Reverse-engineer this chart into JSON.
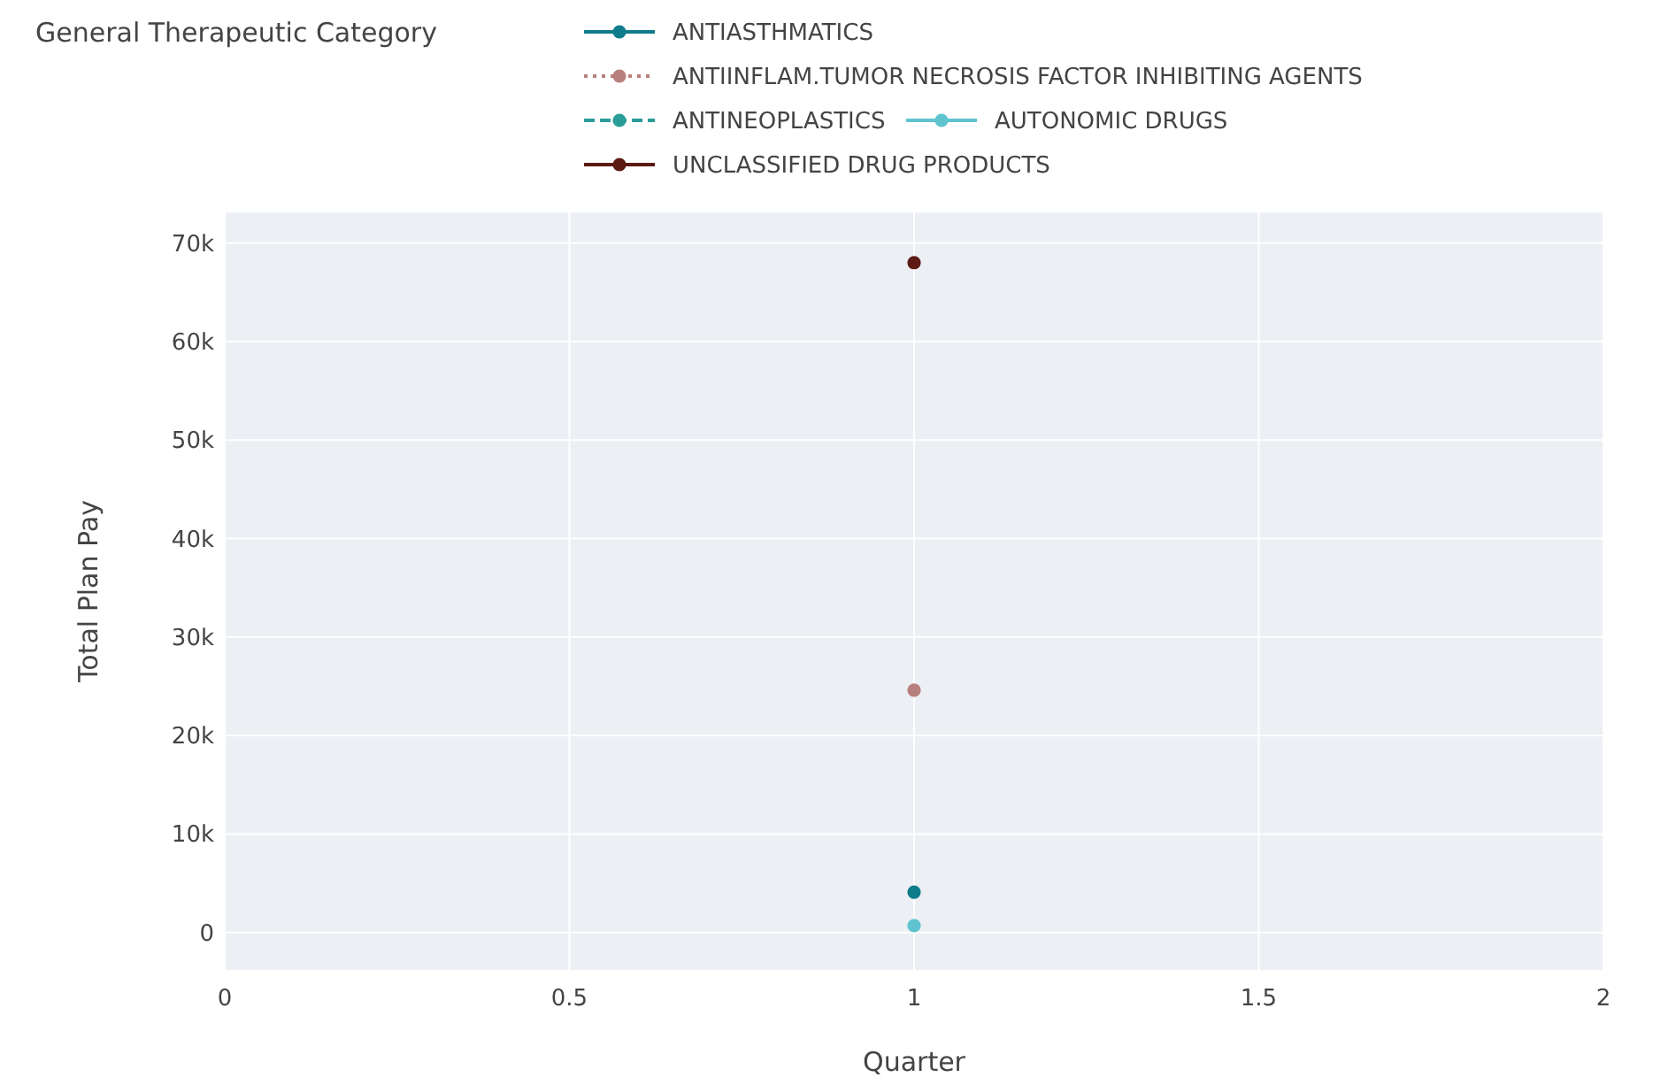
{
  "chart_data": {
    "type": "line",
    "xlabel": "Quarter",
    "ylabel": "Total Plan Pay",
    "legend_title": "General Therapeutic Category",
    "legend": "top",
    "grid": true,
    "marker": "circle",
    "x": [
      1
    ],
    "xlim": [
      0,
      2
    ],
    "xticks": [
      0,
      0.5,
      1,
      1.5,
      2
    ],
    "ylim": [
      -3800,
      73100
    ],
    "yticks": [
      {
        "value": 0,
        "label": "0"
      },
      {
        "value": 10000,
        "label": "10k"
      },
      {
        "value": 20000,
        "label": "20k"
      },
      {
        "value": 30000,
        "label": "30k"
      },
      {
        "value": 40000,
        "label": "40k"
      },
      {
        "value": 50000,
        "label": "50k"
      },
      {
        "value": 60000,
        "label": "60k"
      },
      {
        "value": 70000,
        "label": "70k"
      }
    ],
    "series": [
      {
        "name": "ANTIASTHMATICS",
        "color": "#0e7c8a",
        "line_style": "solid",
        "values": [
          4100
        ]
      },
      {
        "name": "ANTIINFLAM.TUMOR NECROSIS FACTOR INHIBITING AGENTS",
        "color": "#b8807c",
        "line_style": "dotted",
        "values": [
          24600
        ]
      },
      {
        "name": "ANTINEOPLASTICS",
        "color": "#2a9d9a",
        "line_style": "dashed",
        "values": [
          null
        ]
      },
      {
        "name": "AUTONOMIC DRUGS",
        "color": "#5fc4d0",
        "line_style": "solid",
        "values": [
          700
        ]
      },
      {
        "name": "UNCLASSIFIED DRUG PRODUCTS",
        "color": "#5c1a14",
        "line_style": "solid",
        "values": [
          68000
        ]
      }
    ]
  }
}
